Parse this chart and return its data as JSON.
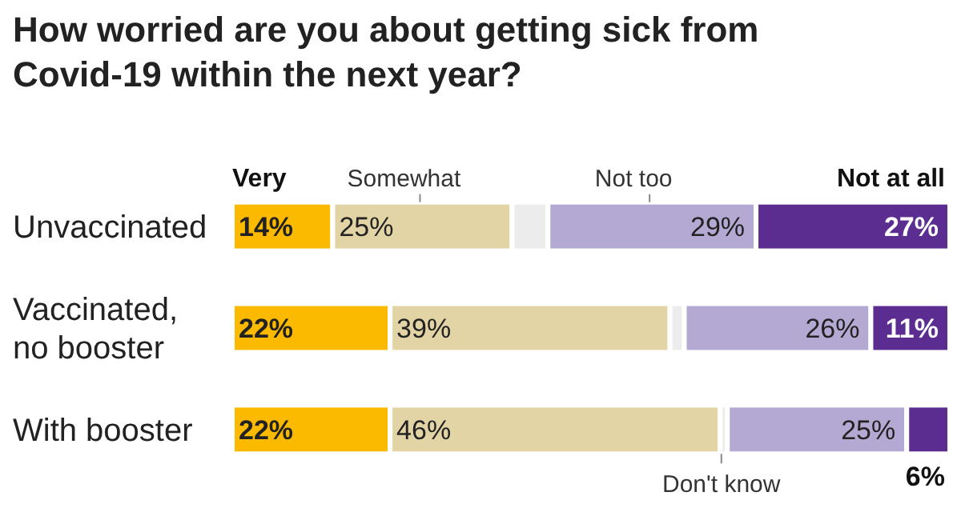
{
  "chart_data": {
    "type": "bar",
    "orientation": "horizontal",
    "stacked": true,
    "title": "How worried are you about getting sick from Covid-19 within the next year?",
    "categories": [
      "Unvaccinated",
      "Vaccinated, no booster",
      "With booster"
    ],
    "series": [
      {
        "name": "Very",
        "color": "#fbb900",
        "values": [
          14,
          22,
          22
        ],
        "value_labels": [
          "14%",
          "22%",
          "22%"
        ]
      },
      {
        "name": "Somewhat",
        "color": "#e3d4a6",
        "values": [
          25,
          39,
          46
        ],
        "value_labels": [
          "25%",
          "39%",
          "46%"
        ]
      },
      {
        "name": "Don't know",
        "color": "#ececec",
        "values": [
          5,
          2,
          1
        ],
        "value_labels": [
          null,
          null,
          null
        ]
      },
      {
        "name": "Not too",
        "color": "#b4a9d2",
        "values": [
          29,
          26,
          25
        ],
        "value_labels": [
          "29%",
          "26%",
          "25%"
        ]
      },
      {
        "name": "Not at all",
        "color": "#5c2d91",
        "values": [
          27,
          11,
          6
        ],
        "value_labels": [
          "27%",
          "11%",
          "6%"
        ]
      }
    ]
  }
}
